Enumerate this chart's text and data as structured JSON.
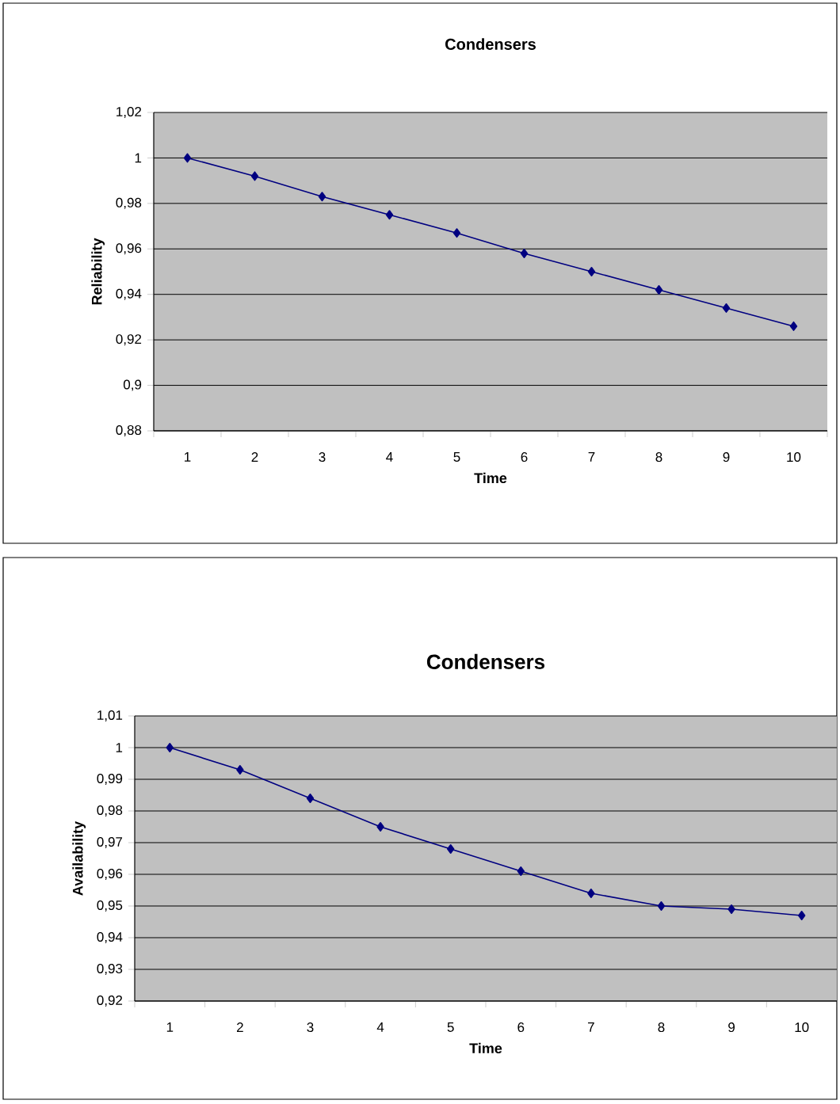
{
  "chart_data": [
    {
      "type": "line",
      "title": "Condensers",
      "xlabel": "Time",
      "ylabel": "Reliability",
      "categories": [
        "1",
        "2",
        "3",
        "4",
        "5",
        "6",
        "7",
        "8",
        "9",
        "10"
      ],
      "series": [
        {
          "color": "#000080",
          "values": [
            1,
            0.992,
            0.983,
            0.975,
            0.967,
            0.958,
            0.95,
            0.942,
            0.934,
            0.926
          ]
        }
      ],
      "ylim": [
        0.88,
        1.02
      ],
      "yticks": [
        {
          "value": 0.88,
          "label": "0,88"
        },
        {
          "value": 0.9,
          "label": "0,9"
        },
        {
          "value": 0.92,
          "label": "0,92"
        },
        {
          "value": 0.94,
          "label": "0,94"
        },
        {
          "value": 0.96,
          "label": "0,96"
        },
        {
          "value": 0.98,
          "label": "0,98"
        },
        1,
        {
          "value": 1.02,
          "label": "1,02"
        }
      ],
      "grid": "y",
      "marker": "diamond",
      "line_style": "solid"
    },
    {
      "type": "line",
      "title": "Condensers",
      "xlabel": "Time",
      "ylabel": "Availability",
      "categories": [
        "1",
        "2",
        "3",
        "4",
        "5",
        "6",
        "7",
        "8",
        "9",
        "10"
      ],
      "series": [
        {
          "color": "#000080",
          "values": [
            1,
            0.993,
            0.984,
            0.975,
            0.968,
            0.961,
            0.954,
            0.95,
            0.949,
            0.947
          ]
        }
      ],
      "ylim": [
        0.92,
        1.01
      ],
      "yticks": [
        {
          "value": 0.92,
          "label": "0,92"
        },
        {
          "value": 0.93,
          "label": "0,93"
        },
        {
          "value": 0.94,
          "label": "0,94"
        },
        {
          "value": 0.95,
          "label": "0,95"
        },
        {
          "value": 0.96,
          "label": "0,96"
        },
        {
          "value": 0.97,
          "label": "0,97"
        },
        {
          "value": 0.98,
          "label": "0,98"
        },
        {
          "value": 0.99,
          "label": "0,99"
        },
        1,
        {
          "value": 1.01,
          "label": "1,01"
        }
      ],
      "grid": "y",
      "marker": "diamond",
      "line_style": "solid"
    }
  ]
}
